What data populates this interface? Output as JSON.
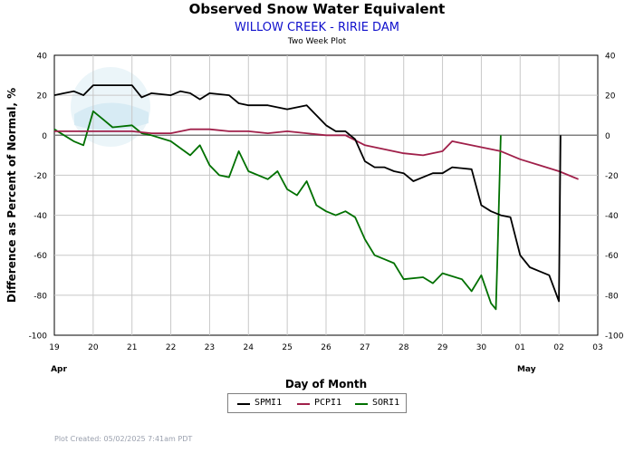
{
  "header": {
    "title": "Observed Snow Water Equivalent",
    "subtitle": "WILLOW CREEK - RIRIE DAM",
    "subtitle2": "Two Week Plot"
  },
  "footer": {
    "plot_created": "Plot Created: 05/02/2025 7:41am PDT"
  },
  "colors": {
    "SPMI1": "#000000",
    "PCPI1": "#a0204a",
    "SORI1": "#007000",
    "zero_line": "#808080",
    "grid": "#c8c8c8",
    "subtitle": "#1010cc"
  },
  "chart_data": {
    "type": "line",
    "title": "Observed Snow Water Equivalent",
    "subtitle": "WILLOW CREEK - RIRIE DAM",
    "xlabel": "Day of Month",
    "ylabel": "Difference as Percent of Normal, %",
    "ylim": [
      -100,
      40
    ],
    "yticks": [
      40,
      20,
      0,
      -20,
      -40,
      -60,
      -80,
      -100
    ],
    "xlim": [
      "2025-04-19",
      "2025-05-03"
    ],
    "xtick_labels": [
      "19",
      "20",
      "21",
      "22",
      "23",
      "24",
      "25",
      "26",
      "27",
      "28",
      "29",
      "30",
      "01",
      "02",
      "03"
    ],
    "month_labels": [
      "Apr",
      "May"
    ],
    "grid": true,
    "legend_position": "bottom-center",
    "series": [
      {
        "name": "SPMI1",
        "points": [
          [
            "2025-04-19 00:00",
            20
          ],
          [
            "2025-04-19 06:00",
            21
          ],
          [
            "2025-04-19 12:00",
            22
          ],
          [
            "2025-04-19 18:00",
            20
          ],
          [
            "2025-04-20 00:00",
            25
          ],
          [
            "2025-04-20 12:00",
            25
          ],
          [
            "2025-04-21 00:00",
            25
          ],
          [
            "2025-04-21 06:00",
            19
          ],
          [
            "2025-04-21 12:00",
            21
          ],
          [
            "2025-04-22 00:00",
            20
          ],
          [
            "2025-04-22 06:00",
            22
          ],
          [
            "2025-04-22 12:00",
            21
          ],
          [
            "2025-04-22 18:00",
            18
          ],
          [
            "2025-04-23 00:00",
            21
          ],
          [
            "2025-04-23 12:00",
            20
          ],
          [
            "2025-04-23 18:00",
            16
          ],
          [
            "2025-04-24 00:00",
            15
          ],
          [
            "2025-04-24 12:00",
            15
          ],
          [
            "2025-04-25 00:00",
            13
          ],
          [
            "2025-04-25 12:00",
            15
          ],
          [
            "2025-04-25 18:00",
            10
          ],
          [
            "2025-04-26 00:00",
            5
          ],
          [
            "2025-04-26 06:00",
            2
          ],
          [
            "2025-04-26 12:00",
            2
          ],
          [
            "2025-04-26 18:00",
            -2
          ],
          [
            "2025-04-27 00:00",
            -13
          ],
          [
            "2025-04-27 06:00",
            -16
          ],
          [
            "2025-04-27 12:00",
            -16
          ],
          [
            "2025-04-27 18:00",
            -18
          ],
          [
            "2025-04-28 00:00",
            -19
          ],
          [
            "2025-04-28 06:00",
            -23
          ],
          [
            "2025-04-28 12:00",
            -21
          ],
          [
            "2025-04-28 18:00",
            -19
          ],
          [
            "2025-04-29 00:00",
            -19
          ],
          [
            "2025-04-29 06:00",
            -16
          ],
          [
            "2025-04-29 18:00",
            -17
          ],
          [
            "2025-04-30 00:00",
            -35
          ],
          [
            "2025-04-30 06:00",
            -38
          ],
          [
            "2025-04-30 12:00",
            -40
          ],
          [
            "2025-04-30 18:00",
            -41
          ],
          [
            "2025-05-01 00:00",
            -60
          ],
          [
            "2025-05-01 06:00",
            -66
          ],
          [
            "2025-05-01 12:00",
            -68
          ],
          [
            "2025-05-01 18:00",
            -70
          ],
          [
            "2025-05-02 00:00",
            -83
          ],
          [
            "2025-05-02 01:00",
            0
          ]
        ]
      },
      {
        "name": "PCPI1",
        "points": [
          [
            "2025-04-19 00:00",
            2
          ],
          [
            "2025-04-20 00:00",
            2
          ],
          [
            "2025-04-21 00:00",
            2
          ],
          [
            "2025-04-21 12:00",
            1
          ],
          [
            "2025-04-22 00:00",
            1
          ],
          [
            "2025-04-22 12:00",
            3
          ],
          [
            "2025-04-23 00:00",
            3
          ],
          [
            "2025-04-23 12:00",
            2
          ],
          [
            "2025-04-24 00:00",
            2
          ],
          [
            "2025-04-24 12:00",
            1
          ],
          [
            "2025-04-25 00:00",
            2
          ],
          [
            "2025-04-25 12:00",
            1
          ],
          [
            "2025-04-26 00:00",
            0
          ],
          [
            "2025-04-26 12:00",
            0
          ],
          [
            "2025-04-27 00:00",
            -5
          ],
          [
            "2025-04-27 12:00",
            -7
          ],
          [
            "2025-04-28 00:00",
            -9
          ],
          [
            "2025-04-28 12:00",
            -10
          ],
          [
            "2025-04-29 00:00",
            -8
          ],
          [
            "2025-04-29 06:00",
            -3
          ],
          [
            "2025-04-29 12:00",
            -4
          ],
          [
            "2025-04-30 00:00",
            -6
          ],
          [
            "2025-04-30 12:00",
            -8
          ],
          [
            "2025-05-01 00:00",
            -12
          ],
          [
            "2025-05-01 12:00",
            -15
          ],
          [
            "2025-05-02 00:00",
            -18
          ],
          [
            "2025-05-02 12:00",
            -22
          ]
        ]
      },
      {
        "name": "SORI1",
        "points": [
          [
            "2025-04-19 00:00",
            3
          ],
          [
            "2025-04-19 12:00",
            -3
          ],
          [
            "2025-04-19 18:00",
            -5
          ],
          [
            "2025-04-20 00:00",
            12
          ],
          [
            "2025-04-20 06:00",
            8
          ],
          [
            "2025-04-20 12:00",
            4
          ],
          [
            "2025-04-21 00:00",
            5
          ],
          [
            "2025-04-21 06:00",
            1
          ],
          [
            "2025-04-21 12:00",
            0
          ],
          [
            "2025-04-22 00:00",
            -3
          ],
          [
            "2025-04-22 12:00",
            -10
          ],
          [
            "2025-04-22 18:00",
            -5
          ],
          [
            "2025-04-23 00:00",
            -15
          ],
          [
            "2025-04-23 06:00",
            -20
          ],
          [
            "2025-04-23 12:00",
            -21
          ],
          [
            "2025-04-23 18:00",
            -8
          ],
          [
            "2025-04-24 00:00",
            -18
          ],
          [
            "2025-04-24 12:00",
            -22
          ],
          [
            "2025-04-24 18:00",
            -18
          ],
          [
            "2025-04-25 00:00",
            -27
          ],
          [
            "2025-04-25 06:00",
            -30
          ],
          [
            "2025-04-25 12:00",
            -23
          ],
          [
            "2025-04-25 18:00",
            -35
          ],
          [
            "2025-04-26 00:00",
            -38
          ],
          [
            "2025-04-26 06:00",
            -40
          ],
          [
            "2025-04-26 12:00",
            -38
          ],
          [
            "2025-04-26 18:00",
            -41
          ],
          [
            "2025-04-27 00:00",
            -52
          ],
          [
            "2025-04-27 06:00",
            -60
          ],
          [
            "2025-04-27 12:00",
            -62
          ],
          [
            "2025-04-27 18:00",
            -64
          ],
          [
            "2025-04-28 00:00",
            -72
          ],
          [
            "2025-04-28 12:00",
            -71
          ],
          [
            "2025-04-28 18:00",
            -74
          ],
          [
            "2025-04-29 00:00",
            -69
          ],
          [
            "2025-04-29 12:00",
            -72
          ],
          [
            "2025-04-29 18:00",
            -78
          ],
          [
            "2025-04-30 00:00",
            -70
          ],
          [
            "2025-04-30 06:00",
            -84
          ],
          [
            "2025-04-30 09:00",
            -87
          ],
          [
            "2025-04-30 10:00",
            -60
          ],
          [
            "2025-04-30 12:00",
            0
          ]
        ]
      }
    ]
  }
}
